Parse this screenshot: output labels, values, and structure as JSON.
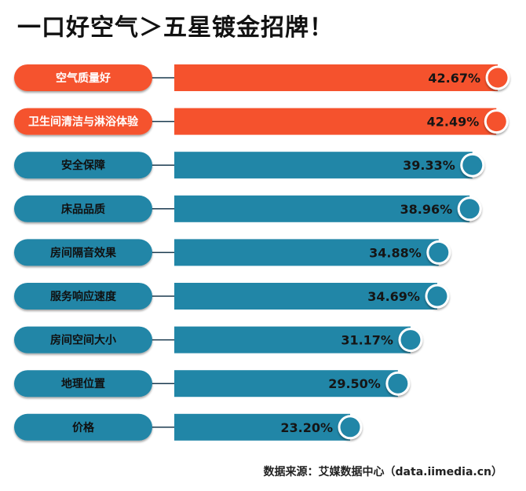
{
  "title": "一口好空气＞五星镀金招牌！",
  "source": "数据来源：艾媒数据中心（data.iimedia.cn）",
  "colors": {
    "highlight": "#f5522d",
    "normal": "#2186a7",
    "dark": "#1a3a4f"
  },
  "chart_data": {
    "type": "bar",
    "orientation": "horizontal",
    "title": "一口好空气＞五星镀金招牌！",
    "categories": [
      "空气质量好",
      "卫生间清洁与淋浴体验",
      "安全保障",
      "床品品质",
      "房间隔音效果",
      "服务响应速度",
      "房间空间大小",
      "地理位置",
      "价格"
    ],
    "values": [
      42.67,
      42.49,
      39.33,
      38.96,
      34.88,
      34.69,
      31.17,
      29.5,
      23.2
    ],
    "labels": [
      "42.67%",
      "42.49%",
      "39.33%",
      "38.96%",
      "34.88%",
      "34.69%",
      "31.17%",
      "29.50%",
      "23.20%"
    ],
    "highlighted": [
      true,
      true,
      false,
      false,
      false,
      false,
      false,
      false,
      false
    ],
    "unit": "%"
  }
}
